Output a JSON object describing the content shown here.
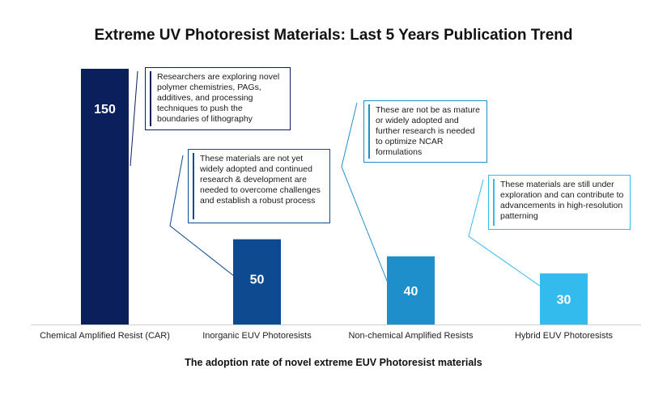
{
  "chart_data": {
    "type": "bar",
    "title": "Extreme UV Photoresist Materials: Last 5 Years Publication Trend",
    "xlabel": "The adoption rate of novel extreme EUV Photoresist materials",
    "ylabel": "",
    "ylim": [
      0,
      150
    ],
    "grid": false,
    "categories": [
      "Chemical Amplified Resist (CAR)",
      "Inorganic EUV Photoresists",
      "Non-chemical Amplified Resists",
      "Hybrid EUV Photoresists"
    ],
    "values": [
      150,
      50,
      40,
      30
    ],
    "data_labels": [
      "150",
      "50",
      "40",
      "30"
    ],
    "colors": [
      "#0b1f5c",
      "#0d4a8f",
      "#1f8fcc",
      "#33bbee"
    ],
    "annotations": [
      "Researchers are exploring novel polymer chemistries, PAGs, additives, and processing techniques to push the boundaries of lithography",
      "These materials are not yet widely adopted and continued research & development are needed to overcome challenges and establish a robust process",
      "These are not be as mature or widely adopted and further research is needed to optimize NCAR formulations",
      "These materials are still under exploration and can contribute to advancements in high-resolution patterning"
    ]
  }
}
